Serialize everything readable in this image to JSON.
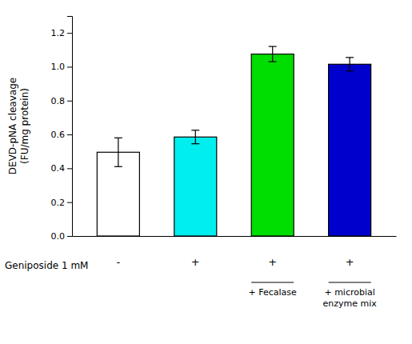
{
  "chart_data": {
    "type": "bar",
    "ylabel": "DEVD-pNA cleavage\n(FU/mg protein)",
    "xlabel": "Geniposide 1 mM",
    "categories": [
      "-",
      "+",
      "+",
      "+"
    ],
    "values": [
      0.495,
      0.585,
      1.075,
      1.015
    ],
    "errors": [
      0.085,
      0.04,
      0.045,
      0.04
    ],
    "colors": [
      "white",
      "#00EEEE",
      "#00DD00",
      "#0000CC"
    ],
    "annotations": [
      null,
      null,
      "+ Fecalase",
      "+ microbial\nenzyme mix"
    ],
    "ylim": [
      0,
      1.3
    ],
    "yticks": [
      {
        "value": 0.0,
        "label": "0.0"
      },
      0.2,
      0.4,
      0.6,
      0.8,
      {
        "value": 1.0,
        "label": "1.0"
      },
      1.2
    ],
    "grid": false
  }
}
